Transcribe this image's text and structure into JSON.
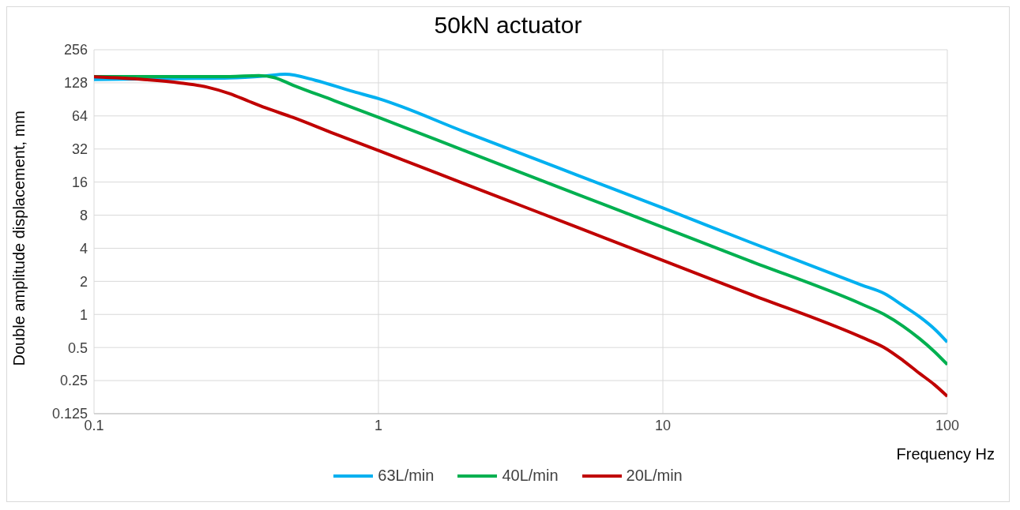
{
  "chart_data": {
    "type": "line",
    "title": "50kN actuator",
    "xlabel": "Frequency Hz",
    "ylabel": "Double amplitude displacement, mm",
    "log": "xy",
    "grid": true,
    "legend": "bottom",
    "marker": "none",
    "line_style": "solid",
    "xlim": [
      0.1,
      100
    ],
    "xticks": [
      0.1,
      1,
      10,
      100
    ],
    "ylim": [
      0.125,
      256
    ],
    "yticks": [
      0.125,
      0.25,
      0.5,
      1,
      2,
      4,
      8,
      16,
      32,
      64,
      128,
      256
    ],
    "series": [
      {
        "name": "63L/min",
        "color": "#00b0f0",
        "x": [
          0.1,
          0.2,
          0.3,
          0.4,
          0.47,
          0.6,
          0.8,
          1,
          2,
          5,
          10,
          20,
          50,
          60,
          70,
          80,
          90,
          100
        ],
        "values": [
          137,
          140,
          142,
          148,
          153,
          135,
          108,
          92,
          46,
          18.5,
          9.3,
          4.6,
          1.85,
          1.55,
          1.2,
          0.95,
          0.74,
          0.56
        ]
      },
      {
        "name": "40L/min",
        "color": "#00b050",
        "x": [
          0.1,
          0.2,
          0.3,
          0.38,
          0.43,
          0.5,
          0.7,
          1,
          2,
          5,
          10,
          20,
          50,
          60,
          70,
          80,
          90,
          100
        ],
        "values": [
          146,
          146,
          146,
          149,
          143,
          122,
          88,
          62,
          31,
          12.4,
          6.2,
          3.1,
          1.24,
          1.0,
          0.78,
          0.6,
          0.46,
          0.35
        ]
      },
      {
        "name": "20L/min",
        "color": "#c00000",
        "x": [
          0.1,
          0.15,
          0.2,
          0.25,
          0.3,
          0.35,
          0.4,
          0.5,
          0.7,
          1,
          2,
          5,
          10,
          20,
          50,
          60,
          70,
          80,
          90,
          100
        ],
        "values": [
          145,
          137,
          128,
          117,
          102,
          87,
          76,
          62,
          44,
          31,
          15.5,
          6.2,
          3.1,
          1.55,
          0.62,
          0.5,
          0.38,
          0.29,
          0.23,
          0.18
        ]
      }
    ]
  }
}
